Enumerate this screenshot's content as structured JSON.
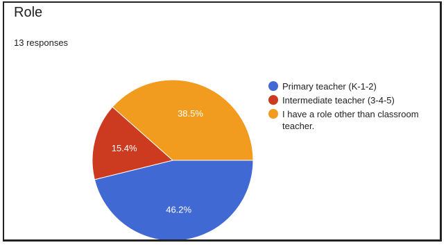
{
  "card": {
    "title": "Role",
    "subtitle": "13 responses"
  },
  "chart_data": {
    "type": "pie",
    "title": "Role",
    "categories": [
      "Primary teacher (K-1-2)",
      "Intermediate teacher (3-4-5)",
      "I have a role other than classroom teacher."
    ],
    "values": [
      46.2,
      15.4,
      38.5
    ],
    "data_labels": [
      "46.2%",
      "15.4%",
      "38.5%"
    ],
    "colors": [
      "#4169d4",
      "#cc3a1f",
      "#f29c1f"
    ],
    "legend_position": "right"
  }
}
